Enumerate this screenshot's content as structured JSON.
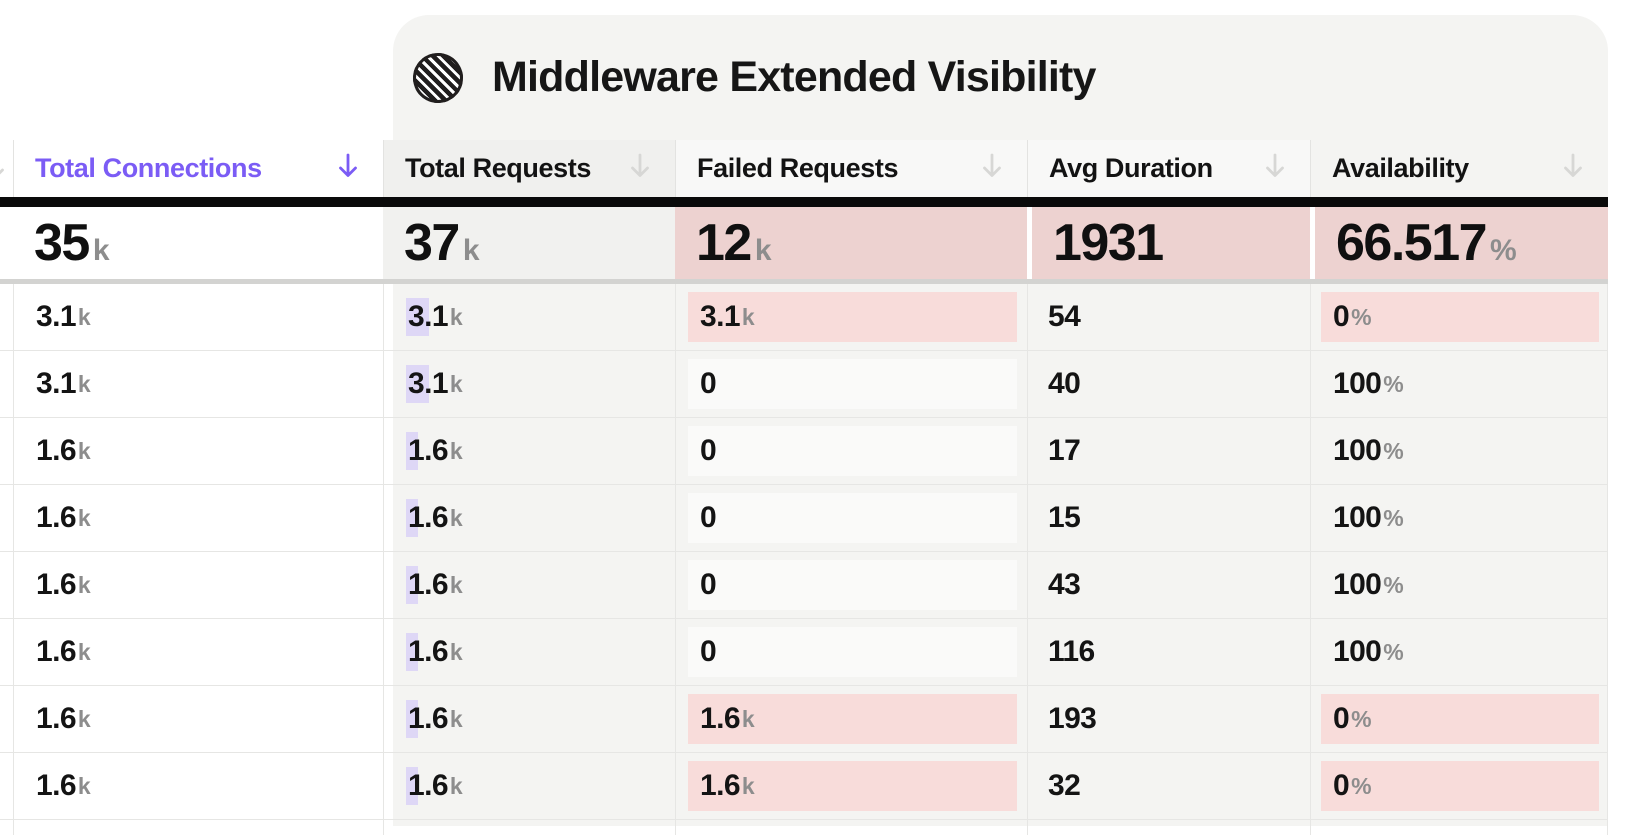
{
  "panel": {
    "title": "Middleware Extended Visibility",
    "logo_icon": "middleware-logo-icon"
  },
  "table": {
    "columns": [
      {
        "id": "total_connections",
        "label": "Total Connections",
        "sorted": true,
        "sort_icon": "arrow-down-icon"
      },
      {
        "id": "total_requests",
        "label": "Total Requests",
        "sorted": false,
        "sort_icon": "arrow-down-icon"
      },
      {
        "id": "failed_requests",
        "label": "Failed Requests",
        "sorted": false,
        "sort_icon": "arrow-down-icon"
      },
      {
        "id": "avg_duration",
        "label": "Avg Duration",
        "sorted": false,
        "sort_icon": "arrow-down-icon"
      },
      {
        "id": "availability",
        "label": "Availability",
        "sorted": false,
        "sort_icon": "arrow-down-icon"
      }
    ],
    "totals": {
      "total_connections": {
        "num": "35",
        "unit": "k",
        "highlight": "none"
      },
      "total_requests": {
        "num": "37",
        "unit": "k",
        "highlight": "gray"
      },
      "failed_requests": {
        "num": "12",
        "unit": "k",
        "highlight": "pink"
      },
      "avg_duration": {
        "num": "1931",
        "unit": "",
        "highlight": "pink"
      },
      "availability": {
        "num": "66.517",
        "unit": "%",
        "highlight": "pink"
      }
    },
    "bar_max_value": 37000,
    "rows": [
      {
        "total_connections": {
          "num": "3.1",
          "unit": "k"
        },
        "total_requests": {
          "num": "3.1",
          "unit": "k",
          "bar_value": 3100
        },
        "failed_requests": {
          "num": "3.1",
          "unit": "k",
          "value": 3100
        },
        "avg_duration": {
          "num": "54"
        },
        "availability": {
          "num": "0",
          "unit": "%",
          "value": 0
        }
      },
      {
        "total_connections": {
          "num": "3.1",
          "unit": "k"
        },
        "total_requests": {
          "num": "3.1",
          "unit": "k",
          "bar_value": 3100
        },
        "failed_requests": {
          "num": "0",
          "unit": "",
          "value": 0
        },
        "avg_duration": {
          "num": "40"
        },
        "availability": {
          "num": "100",
          "unit": "%",
          "value": 100
        }
      },
      {
        "total_connections": {
          "num": "1.6",
          "unit": "k"
        },
        "total_requests": {
          "num": "1.6",
          "unit": "k",
          "bar_value": 1600
        },
        "failed_requests": {
          "num": "0",
          "unit": "",
          "value": 0
        },
        "avg_duration": {
          "num": "17"
        },
        "availability": {
          "num": "100",
          "unit": "%",
          "value": 100
        }
      },
      {
        "total_connections": {
          "num": "1.6",
          "unit": "k"
        },
        "total_requests": {
          "num": "1.6",
          "unit": "k",
          "bar_value": 1600
        },
        "failed_requests": {
          "num": "0",
          "unit": "",
          "value": 0
        },
        "avg_duration": {
          "num": "15"
        },
        "availability": {
          "num": "100",
          "unit": "%",
          "value": 100
        }
      },
      {
        "total_connections": {
          "num": "1.6",
          "unit": "k"
        },
        "total_requests": {
          "num": "1.6",
          "unit": "k",
          "bar_value": 1600
        },
        "failed_requests": {
          "num": "0",
          "unit": "",
          "value": 0
        },
        "avg_duration": {
          "num": "43"
        },
        "availability": {
          "num": "100",
          "unit": "%",
          "value": 100
        }
      },
      {
        "total_connections": {
          "num": "1.6",
          "unit": "k"
        },
        "total_requests": {
          "num": "1.6",
          "unit": "k",
          "bar_value": 1600
        },
        "failed_requests": {
          "num": "0",
          "unit": "",
          "value": 0
        },
        "avg_duration": {
          "num": "116"
        },
        "availability": {
          "num": "100",
          "unit": "%",
          "value": 100
        }
      },
      {
        "total_connections": {
          "num": "1.6",
          "unit": "k"
        },
        "total_requests": {
          "num": "1.6",
          "unit": "k",
          "bar_value": 1600
        },
        "failed_requests": {
          "num": "1.6",
          "unit": "k",
          "value": 1600
        },
        "avg_duration": {
          "num": "193"
        },
        "availability": {
          "num": "0",
          "unit": "%",
          "value": 0
        }
      },
      {
        "total_connections": {
          "num": "1.6",
          "unit": "k"
        },
        "total_requests": {
          "num": "1.6",
          "unit": "k",
          "bar_value": 1600
        },
        "failed_requests": {
          "num": "1.6",
          "unit": "k",
          "value": 1600
        },
        "avg_duration": {
          "num": "32"
        },
        "availability": {
          "num": "0",
          "unit": "%",
          "value": 0
        }
      }
    ]
  },
  "colors": {
    "accent_purple": "#7b5cf5",
    "arrow_gray": "#d7d7d5",
    "bar_lavender": "#ded7f6",
    "pink_total": "#edd2d0",
    "pink_row": "#f8dcda",
    "neutral_block": "#fafaf9",
    "panel_bg": "#f4f4f2",
    "header_gray_cell": "#f0f0ee",
    "header_light_cell": "#f8f8f7",
    "totals_gray_cell": "#f1f1ef",
    "unit_gray": "#8d8d8d"
  }
}
